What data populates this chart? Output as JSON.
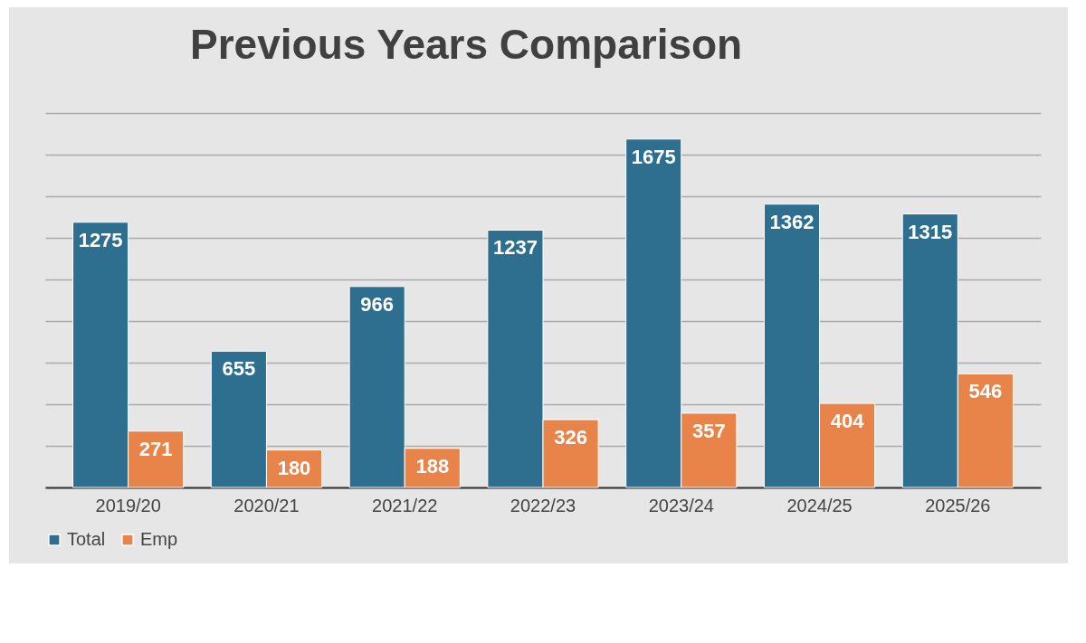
{
  "chart_data": {
    "type": "bar",
    "title": "Previous Years Comparison",
    "categories": [
      "2019/20",
      "2020/21",
      "2021/22",
      "2022/23",
      "2023/24",
      "2024/25",
      "2025/26"
    ],
    "series": [
      {
        "name": "Total",
        "color": "#2e6e8e",
        "values": [
          1275,
          655,
          966,
          1237,
          1675,
          1362,
          1315
        ]
      },
      {
        "name": "Emp",
        "color": "#e8834a",
        "values": [
          271,
          180,
          188,
          326,
          357,
          404,
          546
        ]
      }
    ],
    "ylim": [
      0,
      1800
    ],
    "yticks": [
      {
        "value": 0,
        "label": null
      },
      {
        "value": 200,
        "label": null
      },
      {
        "value": 400,
        "label": null
      },
      {
        "value": 600,
        "label": null
      },
      {
        "value": 800,
        "label": null
      },
      {
        "value": 1000,
        "label": null
      },
      {
        "value": 1200,
        "label": null
      },
      {
        "value": 1400,
        "label": null
      },
      {
        "value": 1600,
        "label": null
      },
      {
        "value": 1800,
        "label": null
      }
    ],
    "grid": "y",
    "tick_labels": "x",
    "legend": "bottom",
    "data_labels": true
  }
}
